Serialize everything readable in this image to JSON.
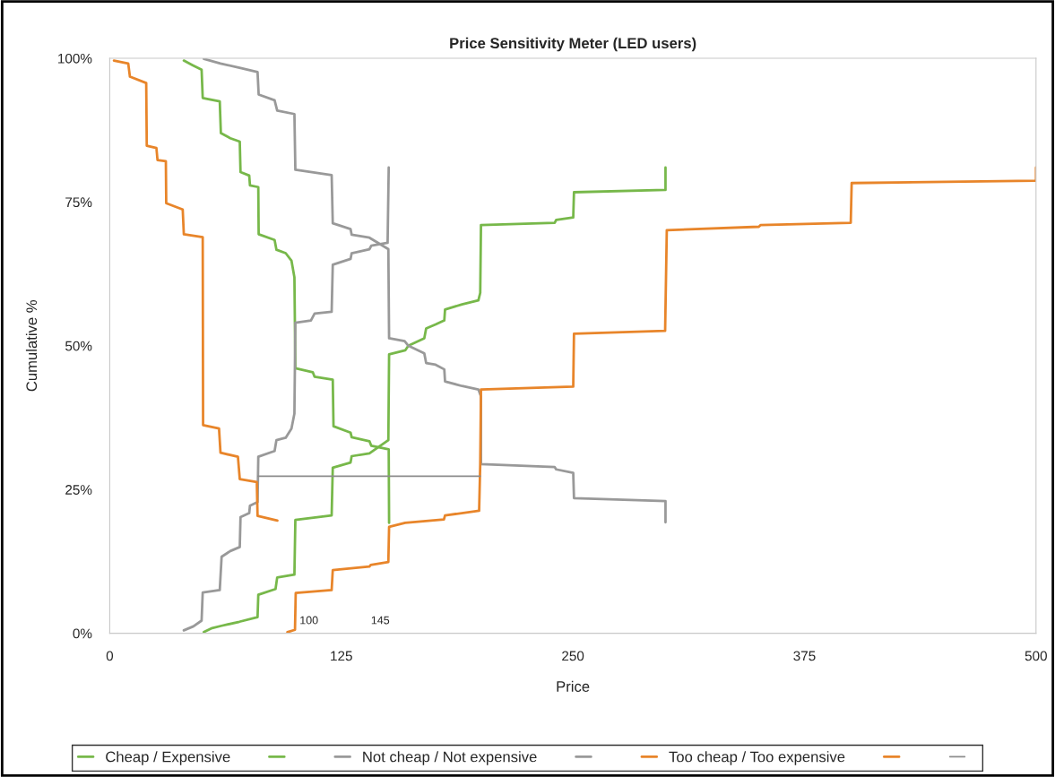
{
  "chart_data": {
    "type": "line",
    "title": "Price Sensitivity Meter (LED users)",
    "xlabel": "Price",
    "ylabel": "Cumulative %",
    "xlim": [
      0,
      500
    ],
    "xticks": [
      0,
      125,
      250,
      375,
      500
    ],
    "ylim": [
      0,
      100
    ],
    "yticks": [
      {
        "value": 0,
        "label": "0%"
      },
      {
        "value": 25,
        "label": "25%"
      },
      {
        "value": 50,
        "label": "50%"
      },
      {
        "value": 75,
        "label": "75%"
      },
      {
        "value": 100,
        "label": "100%"
      }
    ],
    "grid": false,
    "legend": "bottom",
    "marker": "none",
    "line_style": "solid",
    "annotations": [
      "100",
      "145"
    ],
    "series": [
      {
        "name": "Cheap / Expensive",
        "color": "#77b84a",
        "x": [
          40,
          44.7,
          49.6,
          50.2,
          59.4,
          60,
          65.1,
          70.2,
          70.6,
          75.3,
          75.7,
          80.2,
          80.4,
          89,
          90,
          95,
          98.1,
          99.7,
          100.2,
          109.6,
          110.6,
          120.4,
          120.8,
          130,
          130.6,
          140.2,
          141.2,
          150.6,
          150.8
        ],
        "values": [
          99.6,
          98.8,
          98,
          93.1,
          92.5,
          87,
          86.1,
          85.5,
          80.2,
          79.6,
          77.9,
          77.6,
          69.4,
          68.4,
          66.7,
          66.1,
          64.8,
          61.9,
          46.1,
          45.4,
          44.6,
          44.1,
          36,
          34.9,
          34.1,
          33.4,
          32.6,
          32,
          19.2
        ]
      },
      {
        "color": "#77b84a",
        "x": [
          50.8,
          55.3,
          60.4,
          70,
          79.8,
          80.2,
          89.5,
          90.4,
          99.7,
          100.2,
          119.8,
          120.4,
          130,
          130.6,
          140.2,
          150.4,
          150.8,
          159.5,
          161.2,
          169.8,
          170.8,
          175.9,
          180.6,
          181,
          190.2,
          199,
          200,
          200.4,
          240.2,
          241,
          250.2,
          250.6,
          300,
          300
        ],
        "values": [
          0.2,
          0.9,
          1.3,
          2,
          2.8,
          6.7,
          7.7,
          9.7,
          10.2,
          19.7,
          20.5,
          28.8,
          29.7,
          30.8,
          31.3,
          33.6,
          48.5,
          49.2,
          50,
          51.3,
          53,
          53.7,
          54.4,
          56.3,
          57.2,
          57.9,
          59.2,
          71,
          71.4,
          71.9,
          72.3,
          76.7,
          77.1,
          81
        ]
      },
      {
        "name": "Not cheap / Not expensive",
        "color": "#999999",
        "x": [
          50.8,
          59.8,
          70.6,
          79.8,
          80.4,
          89,
          90.4,
          99.7,
          100.2,
          119.8,
          120.4,
          130,
          130.6,
          140.2,
          150.4,
          150.8,
          159.2,
          161.2,
          169.8,
          170.8,
          175.9,
          180.6,
          181,
          190.2,
          199,
          200.4,
          200.4,
          240.2,
          241,
          250.2,
          250.6,
          300,
          300
        ],
        "values": [
          99.9,
          99.1,
          98.3,
          97.6,
          93.7,
          92.7,
          90.9,
          90.3,
          80.6,
          79.7,
          71.3,
          70.3,
          69.3,
          68.8,
          66.8,
          51.3,
          50.8,
          50,
          48.7,
          47,
          46.7,
          45.9,
          43.8,
          43,
          42.4,
          41.2,
          29.4,
          28.9,
          28.5,
          27.9,
          23.5,
          23,
          19.3
        ]
      },
      {
        "color": "#999999",
        "x": [
          40,
          45.2,
          49.6,
          50.2,
          59.4,
          60.4,
          65.1,
          70.2,
          70.6,
          75.3,
          75.7,
          79.8,
          80.2,
          89,
          90,
          95,
          98.1,
          99.7,
          100.2,
          108.6,
          110.6,
          119.8,
          120.4,
          130,
          130.6,
          140.2,
          141.2,
          150,
          150.6
        ],
        "values": [
          0.5,
          1.2,
          2.2,
          7.1,
          7.5,
          13.3,
          14.3,
          15,
          20.2,
          20.9,
          22.2,
          22.8,
          30.7,
          31.7,
          33.6,
          34,
          35.6,
          38.2,
          54,
          54.4,
          55.6,
          55.9,
          64.1,
          65.1,
          66.1,
          66.8,
          67.4,
          67.9,
          81
        ]
      },
      {
        "name": "Too cheap / Too expensive",
        "color": "#e8852a",
        "x": [
          2.3,
          10,
          10.9,
          19.7,
          20,
          25.2,
          25.8,
          30.3,
          30.5,
          39.4,
          40,
          50.2,
          50.4,
          59,
          59.8,
          69.2,
          70.2,
          79.4,
          79.8,
          90.5
        ],
        "values": [
          99.6,
          99.1,
          96.8,
          95.7,
          84.8,
          84.4,
          82.3,
          82.1,
          74.8,
          73.7,
          69.4,
          68.9,
          36.2,
          35.6,
          31.4,
          30.7,
          26.8,
          26.3,
          20.4,
          19.6
        ]
      },
      {
        "color": "#e8852a",
        "x": [
          95.9,
          100,
          100.4,
          119.8,
          120.4,
          140.2,
          140.9,
          150.4,
          150.8,
          159.5,
          180.4,
          181,
          199.4,
          200,
          200.4,
          250.2,
          250.6,
          299.8,
          300.7,
          350.4,
          351.4,
          400,
          400.5,
          500,
          500
        ],
        "values": [
          0.2,
          0.6,
          7,
          7.5,
          11,
          11.6,
          11.9,
          12.4,
          18.5,
          19.2,
          19.8,
          20.5,
          21.3,
          29.4,
          42.4,
          42.9,
          52.1,
          52.6,
          70.1,
          70.7,
          71,
          71.4,
          78.3,
          78.7,
          81
        ]
      },
      {
        "color": "#8c8c8c",
        "x": [
          80,
          200
        ],
        "values": [
          27.3,
          27.3
        ]
      }
    ]
  }
}
